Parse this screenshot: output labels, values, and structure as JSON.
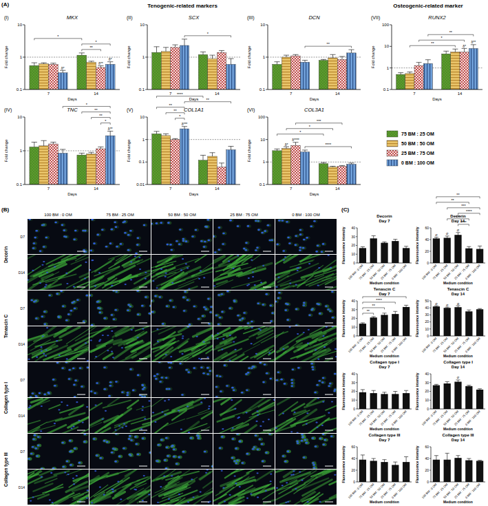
{
  "headers": {
    "panel_a": "(A)",
    "tenogenic": "Tenogenic-related markers",
    "osteogenic": "Osteogenic-related marker",
    "panel_b": "(B)",
    "panel_c": "(C)"
  },
  "legend": {
    "entries": [
      {
        "name": "75 BM : 25 OM",
        "color": "#5b9b2e"
      },
      {
        "name": "50 BM : 50 OM",
        "color": "#e9c46a"
      },
      {
        "name": "25 BM : 75 OM",
        "color": "#c0504d"
      },
      {
        "name": "0 BM : 100 OM",
        "color": "#6f9fd8"
      }
    ]
  },
  "panel_b": {
    "columns": [
      "100 BM : 0 OM",
      "75 BM : 25 OM",
      "50 BM : 50 OM",
      "25 BM : 75 OM",
      "0 BM : 100 OM"
    ],
    "markers": [
      {
        "name": "Decorin",
        "rows": [
          "D7",
          "D14"
        ]
      },
      {
        "name": "Tenascin C",
        "rows": [
          "D7",
          "D14"
        ]
      },
      {
        "name": "Collagen type I",
        "rows": [
          "D7",
          "D14"
        ]
      },
      {
        "name": "Collagen type III",
        "rows": [
          "D7",
          "D14"
        ]
      }
    ]
  },
  "chart_data": [
    {
      "type": "bar",
      "panel_label": "(I)",
      "title": "MKX",
      "x_label": "Days",
      "y_label": "Fold change",
      "categories": [
        "7",
        "14"
      ],
      "log": "y",
      "ylim": [
        0.1,
        10
      ],
      "yticks": [
        0.1,
        1,
        10
      ],
      "reference_line": 1,
      "series": [
        {
          "values": [
            0.55,
            1.15
          ],
          "errors": [
            0.12,
            0.2
          ]
        },
        {
          "values": [
            0.62,
            0.7
          ],
          "errors": [
            0.05,
            0.05
          ]
        },
        {
          "values": [
            0.6,
            0.48
          ],
          "errors": [
            0.05,
            0.06
          ],
          "notes": [
            null,
            "δ**"
          ]
        },
        {
          "values": [
            0.33,
            0.6
          ],
          "errors": [
            0.06,
            0.12
          ],
          "notes": [
            "δ*",
            "δ*"
          ]
        }
      ],
      "significance": [
        {
          "from": [
            0,
            0
          ],
          "to": [
            1,
            0
          ],
          "label": "*"
        },
        {
          "from": [
            1,
            0
          ],
          "to": [
            1,
            2
          ],
          "label": "**"
        },
        {
          "from": [
            1,
            0
          ],
          "to": [
            1,
            3
          ],
          "label": "*"
        }
      ]
    },
    {
      "type": "bar",
      "panel_label": "(II)",
      "title": "SCX",
      "x_label": "Days",
      "y_label": "Fold change",
      "categories": [
        "7",
        "14"
      ],
      "log": "y",
      "ylim": [
        0.1,
        10
      ],
      "yticks": [
        0.1,
        1,
        10
      ],
      "reference_line": 1,
      "series": [
        {
          "values": [
            1.4,
            1.2
          ],
          "errors": [
            0.7,
            0.25
          ]
        },
        {
          "values": [
            1.5,
            0.9
          ],
          "errors": [
            0.5,
            0.25
          ]
        },
        {
          "values": [
            2.0,
            1.4
          ],
          "errors": [
            0.4,
            0.2
          ]
        },
        {
          "values": [
            2.3,
            0.6
          ],
          "errors": [
            1.3,
            0.3
          ]
        }
      ],
      "significance": [
        {
          "from": [
            0,
            3
          ],
          "to": [
            1,
            3
          ],
          "label": "*"
        }
      ]
    },
    {
      "type": "bar",
      "panel_label": "(III)",
      "title": "DCN",
      "x_label": "Days",
      "y_label": "Fold change",
      "categories": [
        "7",
        "14"
      ],
      "log": "y",
      "ylim": [
        0.1,
        10
      ],
      "yticks": [
        0.1,
        1,
        10
      ],
      "reference_line": 1,
      "series": [
        {
          "values": [
            0.6,
            0.8
          ],
          "errors": [
            0.12,
            0.05
          ]
        },
        {
          "values": [
            1.0,
            0.95
          ],
          "errors": [
            0.15,
            0.25
          ]
        },
        {
          "values": [
            1.1,
            0.85
          ],
          "errors": [
            0.1,
            0.2
          ]
        },
        {
          "values": [
            0.7,
            1.35
          ],
          "errors": [
            0.1,
            0.35
          ]
        }
      ],
      "significance": [
        {
          "from": [
            0,
            3
          ],
          "to": [
            1,
            3
          ],
          "label": "**"
        }
      ]
    },
    {
      "type": "bar",
      "panel_label": "(VII)",
      "title": "RUNX2",
      "x_label": "Days",
      "y_label": "Fold change",
      "categories": [
        "7",
        "14"
      ],
      "log": "y",
      "ylim": [
        0.1,
        100
      ],
      "yticks": [
        0.1,
        1,
        10,
        100
      ],
      "reference_line": 1,
      "series": [
        {
          "values": [
            0.5,
            4.5
          ],
          "errors": [
            0.1,
            1.5
          ]
        },
        {
          "values": [
            0.55,
            5.5
          ],
          "errors": [
            0.1,
            2
          ]
        },
        {
          "values": [
            1.3,
            5.5
          ],
          "errors": [
            0.5,
            2.5
          ],
          "notes": [
            null,
            "δ*"
          ]
        },
        {
          "values": [
            1.6,
            8
          ],
          "errors": [
            0.8,
            4
          ],
          "notes": [
            null,
            "δ**"
          ]
        }
      ],
      "significance": [
        {
          "from": [
            0,
            1
          ],
          "to": [
            1,
            1
          ],
          "label": "**"
        },
        {
          "from": [
            0,
            2
          ],
          "to": [
            1,
            2
          ],
          "label": "*"
        },
        {
          "from": [
            0,
            3
          ],
          "to": [
            1,
            3
          ],
          "label": "**"
        }
      ]
    },
    {
      "type": "bar",
      "panel_label": "(IV)",
      "title": "TNC",
      "x_label": "Days",
      "y_label": "Fold change",
      "categories": [
        "7",
        "14"
      ],
      "log": "y",
      "ylim": [
        0.1,
        10
      ],
      "yticks": [
        0.1,
        1,
        10
      ],
      "reference_line": 1,
      "series": [
        {
          "values": [
            1.3,
            0.75
          ],
          "errors": [
            0.5,
            0.1
          ]
        },
        {
          "values": [
            1.4,
            0.8
          ],
          "errors": [
            0.6,
            0.1
          ]
        },
        {
          "values": [
            1.6,
            1.15
          ],
          "errors": [
            0.2,
            0.15
          ]
        },
        {
          "values": [
            0.85,
            2.8
          ],
          "errors": [
            0.25,
            1.0
          ],
          "notes": [
            null,
            "δ**"
          ]
        }
      ],
      "significance": [
        {
          "from": [
            1,
            2
          ],
          "to": [
            1,
            3
          ],
          "label": "*"
        },
        {
          "from": [
            1,
            1
          ],
          "to": [
            1,
            3
          ],
          "label": "**"
        },
        {
          "from": [
            1,
            0
          ],
          "to": [
            1,
            3
          ],
          "label": "**"
        },
        {
          "from": [
            0,
            3
          ],
          "to": [
            1,
            3
          ],
          "label": "*"
        }
      ]
    },
    {
      "type": "bar",
      "panel_label": "(V)",
      "title": "COL1A1",
      "x_label": "Days",
      "y_label": "Fold change",
      "categories": [
        "7",
        "14"
      ],
      "log": "y",
      "ylim": [
        0.01,
        10
      ],
      "yticks": [
        0.01,
        0.1,
        1,
        10
      ],
      "reference_line": 1,
      "series": [
        {
          "values": [
            1.8,
            0.12
          ],
          "errors": [
            0.5,
            0.08
          ]
        },
        {
          "values": [
            1.5,
            0.18
          ],
          "errors": [
            0.3,
            0.08
          ]
        },
        {
          "values": [
            1.0,
            0.06
          ],
          "errors": [
            0.1,
            0.03
          ]
        },
        {
          "values": [
            3.0,
            0.35
          ],
          "errors": [
            0.8,
            0.15
          ],
          "notes": [
            "δ***",
            null
          ]
        }
      ],
      "significance": [
        {
          "from": [
            0,
            2
          ],
          "to": [
            0,
            3
          ],
          "label": "*"
        },
        {
          "from": [
            0,
            1
          ],
          "to": [
            0,
            3
          ],
          "label": "**"
        },
        {
          "from": [
            0,
            0
          ],
          "to": [
            0,
            3
          ],
          "label": "**"
        },
        {
          "from": [
            0,
            3
          ],
          "to": [
            1,
            3
          ],
          "label": "**"
        },
        {
          "from": [
            0,
            0
          ],
          "to": [
            1,
            0
          ],
          "label": "****"
        }
      ]
    },
    {
      "type": "bar",
      "panel_label": "(VI)",
      "title": "COL3A1",
      "x_label": "Days",
      "y_label": "Fold change",
      "categories": [
        "7",
        "14"
      ],
      "log": "y",
      "ylim": [
        0.1,
        100
      ],
      "yticks": [
        0.1,
        1,
        10,
        100
      ],
      "reference_line": 1,
      "series": [
        {
          "values": [
            3.2,
            0.85
          ],
          "errors": [
            0.6,
            0.1
          ]
        },
        {
          "values": [
            4.0,
            0.6
          ],
          "errors": [
            0.8,
            0.05
          ],
          "notes": [
            "δ*",
            null
          ]
        },
        {
          "values": [
            5.5,
            0.65
          ],
          "errors": [
            2.0,
            0.05
          ],
          "notes": [
            "δ****",
            null
          ]
        },
        {
          "values": [
            2.8,
            0.8
          ],
          "errors": [
            0.6,
            0.1
          ]
        }
      ],
      "significance": [
        {
          "from": [
            0,
            0
          ],
          "to": [
            1,
            0
          ],
          "label": "*"
        },
        {
          "from": [
            0,
            1
          ],
          "to": [
            1,
            1
          ],
          "label": "*"
        },
        {
          "from": [
            0,
            2
          ],
          "to": [
            1,
            2
          ],
          "label": "***"
        },
        {
          "from": [
            0,
            3
          ],
          "to": [
            1,
            3
          ],
          "label": "****"
        }
      ]
    },
    {
      "type": "bar",
      "title": "Decorin",
      "subtitle": "Day 7",
      "x_label": "Medium condition",
      "y_label": "Fluorescence intensity",
      "color": "#111111",
      "categories": [
        "100 BM : 0 OM",
        "75 BM : 25 OM",
        "50 BM : 50 OM",
        "25 BM : 75 OM",
        "0 BM : 100 OM"
      ],
      "values": [
        17,
        28,
        23,
        25,
        17
      ],
      "errors": [
        1.5,
        3,
        1,
        2,
        2
      ],
      "ylim": [
        0,
        40
      ],
      "yticks": [
        0,
        10,
        20,
        30,
        40
      ]
    },
    {
      "type": "bar",
      "title": "Decorin",
      "subtitle": "Day 14",
      "x_label": "Medium condition",
      "y_label": "Fluorescence intensity",
      "color": "#111111",
      "categories": [
        "100 BM : 0 OM",
        "75 BM : 25 OM",
        "50 BM : 50 OM",
        "25 BM : 75 OM",
        "0 BM : 100 OM"
      ],
      "values": [
        42,
        43,
        48,
        25,
        24
      ],
      "errors": [
        2,
        3,
        4,
        3,
        5
      ],
      "notes": [
        "σ",
        "σ",
        "σ",
        null,
        null
      ],
      "ylim": [
        0,
        60
      ],
      "yticks": [
        0,
        20,
        40,
        60
      ],
      "significance": [
        {
          "from": 2,
          "to": 3,
          "label": "****"
        },
        {
          "from": 2,
          "to": 4,
          "label": "****"
        },
        {
          "from": 1,
          "to": 3,
          "label": "***"
        },
        {
          "from": 1,
          "to": 4,
          "label": "***"
        },
        {
          "from": 0,
          "to": 3,
          "label": "**"
        },
        {
          "from": 0,
          "to": 4,
          "label": "**"
        }
      ]
    },
    {
      "type": "bar",
      "title": "Tenascin C",
      "subtitle": "Day 7",
      "x_label": "Medium condition",
      "y_label": "Fluorescence intensity",
      "color": "#111111",
      "categories": [
        "100 BM : 0 OM",
        "75 BM : 25 OM",
        "50 BM : 50 OM",
        "25 BM : 75 OM",
        "0 BM : 100 OM"
      ],
      "values": [
        14,
        21,
        24,
        25,
        33
      ],
      "errors": [
        1,
        1,
        2,
        3,
        2
      ],
      "ylim": [
        0,
        40
      ],
      "yticks": [
        0,
        10,
        20,
        30,
        40
      ],
      "significance": [
        {
          "from": 0,
          "to": 1,
          "label": "**"
        },
        {
          "from": 0,
          "to": 2,
          "label": "**"
        },
        {
          "from": 0,
          "to": 3,
          "label": "****"
        },
        {
          "from": 0,
          "to": 4,
          "label": "*"
        }
      ]
    },
    {
      "type": "bar",
      "title": "Tenascin C",
      "subtitle": "Day 14",
      "x_label": "Medium condition",
      "y_label": "Fluorescence intensity",
      "color": "#111111",
      "categories": [
        "100 BM : 0 OM",
        "75 BM : 25 OM",
        "50 BM : 50 OM",
        "25 BM : 75 OM",
        "0 BM : 100 OM"
      ],
      "values": [
        42,
        40,
        41,
        35,
        38
      ],
      "errors": [
        1,
        1,
        2,
        2,
        1
      ],
      "notes": [
        "σ",
        "σ",
        "α",
        null,
        null
      ],
      "ylim": [
        0,
        50
      ],
      "yticks": [
        0,
        10,
        20,
        30,
        40,
        50
      ]
    },
    {
      "type": "bar",
      "title": "Collagen type I",
      "subtitle": "Day 7",
      "x_label": "Medium condition",
      "y_label": "Fluorescence intensity",
      "color": "#111111",
      "categories": [
        "100 BM : 0 OM",
        "75 BM : 25 OM",
        "50 BM : 50 OM",
        "25 BM : 75 OM",
        "0 BM : 100 OM"
      ],
      "values": [
        19,
        18,
        17,
        17,
        18
      ],
      "errors": [
        3,
        3,
        2,
        3,
        3
      ],
      "ylim": [
        0,
        40
      ],
      "yticks": [
        0,
        10,
        20,
        30,
        40
      ]
    },
    {
      "type": "bar",
      "title": "Collagen type I",
      "subtitle": "Day 14",
      "x_label": "Medium condition",
      "y_label": "Fluorescence intensity",
      "color": "#111111",
      "categories": [
        "100 BM : 0 OM",
        "75 BM : 25 OM",
        "50 BM : 50 OM",
        "25 BM : 75 OM",
        "0 BM : 100 OM"
      ],
      "values": [
        27,
        29,
        31,
        26,
        22
      ],
      "errors": [
        1,
        2,
        2,
        1,
        1
      ],
      "notes": [
        null,
        null,
        "σ",
        null,
        null
      ],
      "ylim": [
        0,
        40
      ],
      "yticks": [
        0,
        10,
        20,
        30,
        40
      ]
    },
    {
      "type": "bar",
      "title": "Collagen type III",
      "subtitle": "Day 7",
      "x_label": "Medium condition",
      "y_label": "Fluorescence intensity",
      "color": "#111111",
      "categories": [
        "100 BM : 0 OM",
        "75 BM : 25 OM",
        "50 BM : 50 OM",
        "25 BM : 75 OM",
        "0 BM : 100 OM"
      ],
      "values": [
        38,
        36,
        34,
        29,
        34
      ],
      "errors": [
        8,
        4,
        4,
        5,
        9
      ],
      "ylim": [
        0,
        60
      ],
      "yticks": [
        0,
        20,
        40,
        60
      ]
    },
    {
      "type": "bar",
      "title": "Collagen type III",
      "subtitle": "Day 14",
      "x_label": "Medium condition",
      "y_label": "Fluorescence intensity",
      "color": "#111111",
      "categories": [
        "100 BM : 0 OM",
        "75 BM : 25 OM",
        "50 BM : 50 OM",
        "25 BM : 75 OM",
        "0 BM : 100 OM"
      ],
      "values": [
        38,
        38,
        41,
        37,
        36
      ],
      "errors": [
        7,
        11,
        4,
        3,
        1
      ],
      "ylim": [
        0,
        60
      ],
      "yticks": [
        0,
        20,
        40,
        60
      ]
    }
  ]
}
